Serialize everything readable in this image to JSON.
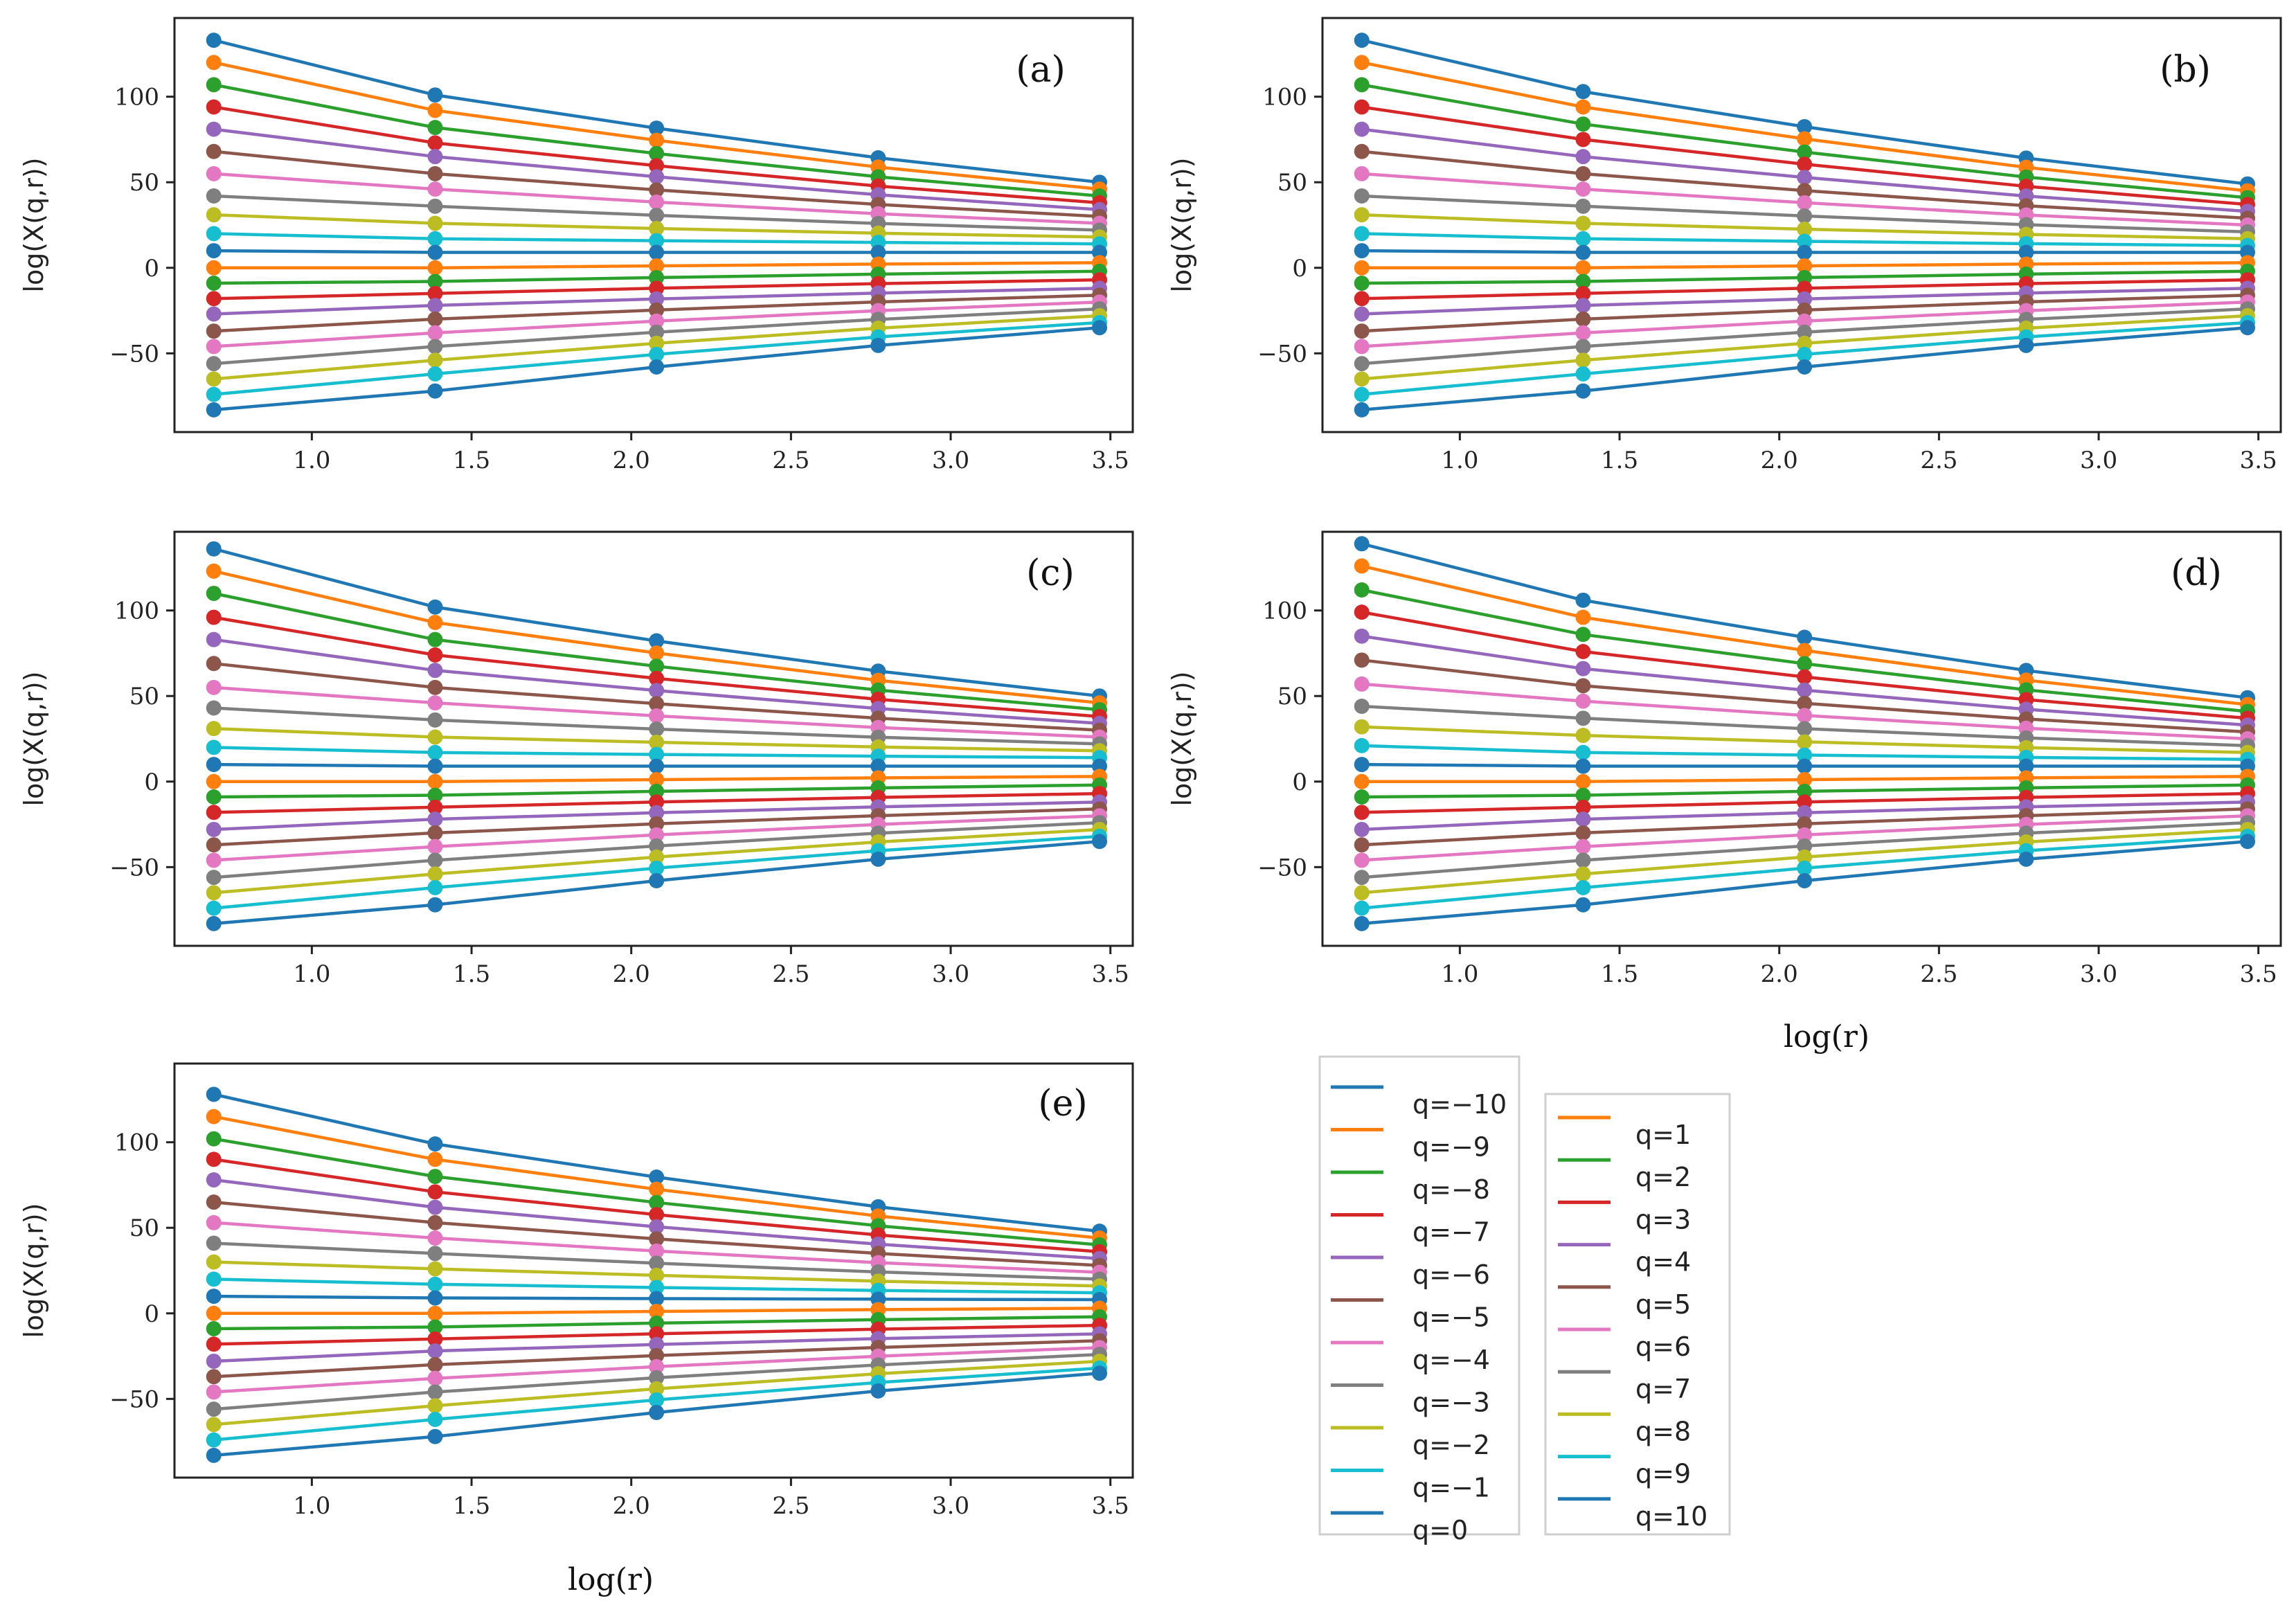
{
  "figure": {
    "xlabel": "log(r)",
    "ylabel": "log(X(q,r))",
    "xticks": [
      1.0,
      1.5,
      2.0,
      2.5,
      3.0,
      3.5
    ],
    "xtick_labels": [
      "1.0",
      "1.5",
      "2.0",
      "2.5",
      "3.0",
      "3.5"
    ],
    "yticks": [
      -50,
      0,
      50,
      100
    ],
    "ytick_labels": [
      "−50",
      "0",
      "50",
      "100"
    ],
    "xlim": [
      0.57,
      3.57
    ],
    "ylim": [
      -96,
      146
    ],
    "x_points": [
      0.693,
      1.386,
      2.079,
      2.773,
      3.466
    ],
    "colors": {
      "blue": "#1f77b4",
      "orange": "#ff7f0e",
      "green": "#2ca02c",
      "red": "#d62728",
      "purple": "#9467bd",
      "brown": "#8c564b",
      "pink": "#e377c2",
      "gray": "#7f7f7f",
      "olive": "#bcbd22",
      "cyan": "#17becf"
    }
  },
  "chart_data": [
    {
      "type": "line",
      "panel_label": "(a)",
      "q": [
        -10,
        -9,
        -8,
        -7,
        -6,
        -5,
        -4,
        -3,
        -2,
        -1,
        0,
        1,
        2,
        3,
        4,
        5,
        6,
        7,
        8,
        9,
        10
      ],
      "start": [
        133,
        120,
        107,
        94,
        81,
        68,
        55,
        42,
        31,
        20,
        10,
        0,
        -9,
        -18,
        -27,
        -37,
        -46,
        -56,
        -65,
        -74,
        -83
      ],
      "end": [
        50,
        46,
        42,
        38,
        34,
        30,
        26,
        22,
        18,
        14,
        9,
        3,
        -2,
        -7,
        -12,
        -16,
        -20,
        -24,
        -28,
        -32,
        -35
      ],
      "mid": [
        101,
        92,
        82,
        73,
        65,
        55,
        46,
        36,
        26,
        17,
        9,
        0,
        -8,
        -15,
        -22,
        -30,
        -38,
        -46,
        -54,
        -62,
        -72
      ]
    },
    {
      "type": "line",
      "panel_label": "(b)",
      "q": [
        -10,
        -9,
        -8,
        -7,
        -6,
        -5,
        -4,
        -3,
        -2,
        -1,
        0,
        1,
        2,
        3,
        4,
        5,
        6,
        7,
        8,
        9,
        10
      ],
      "start": [
        133,
        120,
        107,
        94,
        81,
        68,
        55,
        42,
        31,
        20,
        10,
        0,
        -9,
        -18,
        -27,
        -37,
        -46,
        -56,
        -65,
        -74,
        -83
      ],
      "end": [
        49,
        45,
        41,
        37,
        33,
        29,
        25,
        21,
        17,
        13,
        9,
        3,
        -2,
        -7,
        -12,
        -16,
        -20,
        -24,
        -28,
        -32,
        -35
      ],
      "mid": [
        103,
        94,
        84,
        75,
        65,
        55,
        46,
        36,
        26,
        17,
        9,
        0,
        -8,
        -15,
        -22,
        -30,
        -38,
        -46,
        -54,
        -62,
        -72
      ]
    },
    {
      "type": "line",
      "panel_label": "(c)",
      "q": [
        -10,
        -9,
        -8,
        -7,
        -6,
        -5,
        -4,
        -3,
        -2,
        -1,
        0,
        1,
        2,
        3,
        4,
        5,
        6,
        7,
        8,
        9,
        10
      ],
      "start": [
        136,
        123,
        110,
        96,
        83,
        69,
        55,
        43,
        31,
        20,
        10,
        0,
        -9,
        -18,
        -28,
        -37,
        -46,
        -56,
        -65,
        -74,
        -83
      ],
      "end": [
        50,
        46,
        42,
        38,
        34,
        30,
        26,
        22,
        18,
        14,
        9,
        3,
        -2,
        -7,
        -12,
        -16,
        -20,
        -24,
        -28,
        -32,
        -35
      ],
      "mid": [
        102,
        93,
        83,
        74,
        65,
        55,
        46,
        36,
        26,
        17,
        9,
        0,
        -8,
        -15,
        -22,
        -30,
        -38,
        -46,
        -54,
        -62,
        -72
      ]
    },
    {
      "type": "line",
      "panel_label": "(d)",
      "q": [
        -10,
        -9,
        -8,
        -7,
        -6,
        -5,
        -4,
        -3,
        -2,
        -1,
        0,
        1,
        2,
        3,
        4,
        5,
        6,
        7,
        8,
        9,
        10
      ],
      "start": [
        139,
        126,
        112,
        99,
        85,
        71,
        57,
        44,
        32,
        21,
        10,
        0,
        -9,
        -18,
        -28,
        -37,
        -46,
        -56,
        -65,
        -74,
        -83
      ],
      "end": [
        49,
        45,
        41,
        37,
        33,
        29,
        25,
        21,
        17,
        13,
        9,
        3,
        -2,
        -7,
        -12,
        -16,
        -20,
        -24,
        -28,
        -32,
        -35
      ],
      "mid": [
        106,
        96,
        86,
        76,
        66,
        56,
        47,
        37,
        27,
        17,
        9,
        0,
        -8,
        -15,
        -22,
        -30,
        -38,
        -46,
        -54,
        -62,
        -72
      ]
    },
    {
      "type": "line",
      "panel_label": "(e)",
      "q": [
        -10,
        -9,
        -8,
        -7,
        -6,
        -5,
        -4,
        -3,
        -2,
        -1,
        0,
        1,
        2,
        3,
        4,
        5,
        6,
        7,
        8,
        9,
        10
      ],
      "start": [
        128,
        115,
        102,
        90,
        78,
        65,
        53,
        41,
        30,
        20,
        10,
        0,
        -9,
        -18,
        -28,
        -37,
        -46,
        -56,
        -65,
        -74,
        -83
      ],
      "end": [
        48,
        44,
        40,
        36,
        32,
        28,
        24,
        20,
        16,
        12,
        8,
        3,
        -2,
        -7,
        -12,
        -16,
        -20,
        -24,
        -28,
        -32,
        -35
      ],
      "mid": [
        99,
        90,
        80,
        71,
        62,
        53,
        44,
        35,
        26,
        17,
        9,
        0,
        -8,
        -15,
        -22,
        -30,
        -38,
        -46,
        -54,
        -62,
        -72
      ]
    }
  ],
  "legend": {
    "left": [
      {
        "label": "q=−10",
        "color": "#1f77b4"
      },
      {
        "label": "q=−9",
        "color": "#ff7f0e"
      },
      {
        "label": "q=−8",
        "color": "#2ca02c"
      },
      {
        "label": "q=−7",
        "color": "#d62728"
      },
      {
        "label": "q=−6",
        "color": "#9467bd"
      },
      {
        "label": "q=−5",
        "color": "#8c564b"
      },
      {
        "label": "q=−4",
        "color": "#e377c2"
      },
      {
        "label": "q=−3",
        "color": "#7f7f7f"
      },
      {
        "label": "q=−2",
        "color": "#bcbd22"
      },
      {
        "label": "q=−1",
        "color": "#17becf"
      },
      {
        "label": "q=0",
        "color": "#1f77b4"
      }
    ],
    "right": [
      {
        "label": "q=1",
        "color": "#ff7f0e"
      },
      {
        "label": "q=2",
        "color": "#2ca02c"
      },
      {
        "label": "q=3",
        "color": "#d62728"
      },
      {
        "label": "q=4",
        "color": "#9467bd"
      },
      {
        "label": "q=5",
        "color": "#8c564b"
      },
      {
        "label": "q=6",
        "color": "#e377c2"
      },
      {
        "label": "q=7",
        "color": "#7f7f7f"
      },
      {
        "label": "q=8",
        "color": "#bcbd22"
      },
      {
        "label": "q=9",
        "color": "#17becf"
      },
      {
        "label": "q=10",
        "color": "#1f77b4"
      }
    ]
  }
}
